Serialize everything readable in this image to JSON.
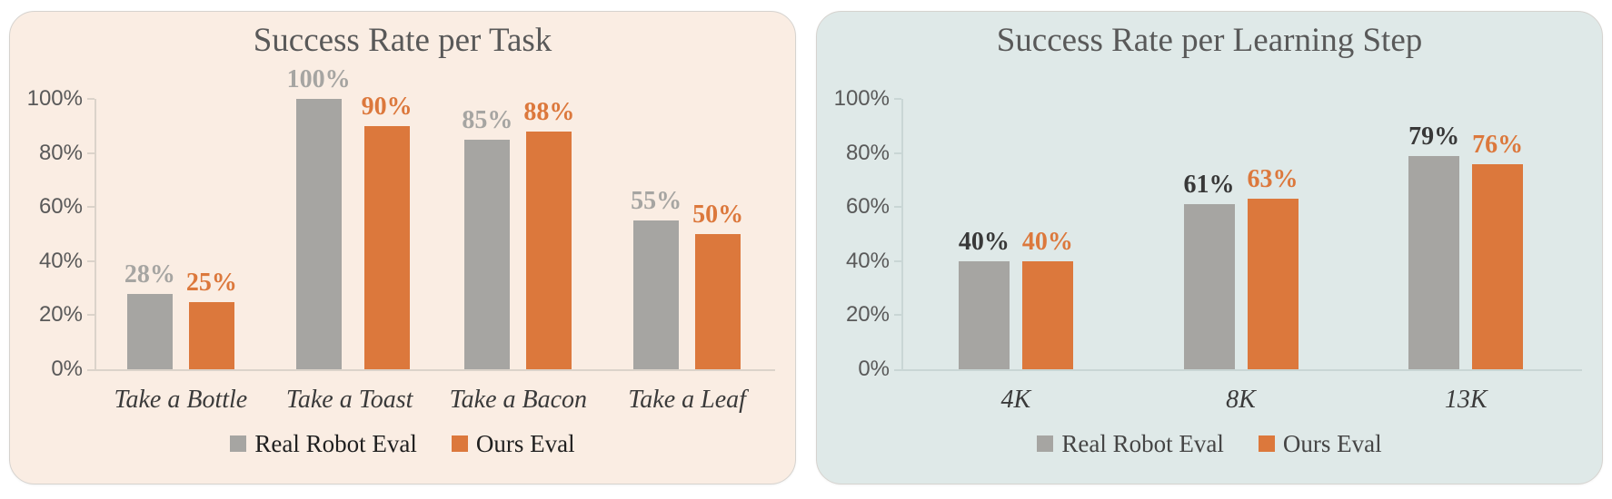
{
  "chart_data": [
    {
      "type": "bar",
      "title": "Success Rate per Task",
      "categories": [
        "Take a Bottle",
        "Take a Toast",
        "Take a Bacon",
        "Take a Leaf"
      ],
      "series": [
        {
          "name": "Real Robot Eval",
          "color": "#A6A5A2",
          "label_color": "#A6A5A2",
          "values": [
            28,
            100,
            85,
            55
          ],
          "value_labels": [
            "28%",
            "100%",
            "85%",
            "55%"
          ]
        },
        {
          "name": "Ours Eval",
          "color": "#DC783C",
          "label_color": "#DC783C",
          "values": [
            25,
            90,
            88,
            50
          ],
          "value_labels": [
            "25%",
            "90%",
            "88%",
            "50%"
          ]
        }
      ],
      "y_ticks": [
        "100%",
        "80%",
        "60%",
        "40%",
        "20%",
        "0%"
      ],
      "ylim": [
        0,
        100
      ],
      "grid": false,
      "legend_position": "bottom",
      "panel_bg": "#FAEDE3",
      "axis_color": "#DBD3CA",
      "title_color": "#595959",
      "tick_label_color": "#595959",
      "category_label_color": "#3A3A3A",
      "legend_text_color": "#1F1F1F"
    },
    {
      "type": "bar",
      "title": "Success Rate per Learning Step",
      "categories": [
        "4K",
        "8K",
        "13K"
      ],
      "series": [
        {
          "name": "Real Robot Eval",
          "color": "#A6A5A2",
          "label_color": "#383838",
          "values": [
            40,
            61,
            79
          ],
          "value_labels": [
            "40%",
            "61%",
            "79%"
          ]
        },
        {
          "name": "Ours Eval",
          "color": "#DC783C",
          "label_color": "#DC783C",
          "values": [
            40,
            63,
            76
          ],
          "value_labels": [
            "40%",
            "63%",
            "76%"
          ]
        }
      ],
      "y_ticks": [
        "100%",
        "80%",
        "60%",
        "40%",
        "20%",
        "0%"
      ],
      "ylim": [
        0,
        100
      ],
      "grid": false,
      "legend_position": "bottom",
      "panel_bg": "#DFE9E8",
      "axis_color": "#C9D6D5",
      "title_color": "#595959",
      "tick_label_color": "#595959",
      "category_label_color": "#3A3A3A",
      "legend_text_color": "#454545"
    }
  ]
}
